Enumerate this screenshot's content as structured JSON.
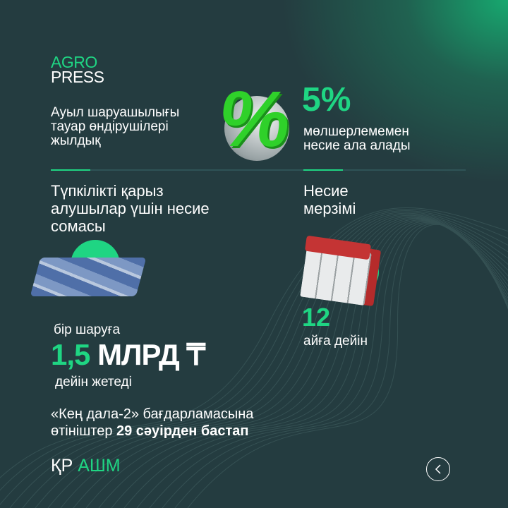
{
  "brand": {
    "line1": "AGRO",
    "line2": "PRESS"
  },
  "intro": {
    "lines": [
      "Ауыл шаруашылығы",
      "тауар өндірушілері",
      "жылдық"
    ]
  },
  "rate": {
    "value": "5%",
    "lines": [
      "мөлшерлемемен",
      "несие ала алады"
    ]
  },
  "amount_heading": {
    "lines": [
      "Түпкілікті қарыз",
      "алушылар үшін несие",
      "сомасы"
    ]
  },
  "term_heading": {
    "lines": [
      "Несие",
      "мерзімі"
    ]
  },
  "amount": {
    "prefix": "бір шаруға",
    "number": "1,5",
    "unit": "МЛРД ₸",
    "suffix": "дейін жетеді"
  },
  "term": {
    "number": "12",
    "suffix": "айға дейін"
  },
  "program": {
    "line1": "«Кең дала-2» бағдарламасына",
    "line2_regular": "өтініштер ",
    "line2_bold": "29 сәуірден бастап"
  },
  "source": {
    "part1": "ҚР ",
    "part2": "АШМ"
  },
  "colors": {
    "background": "#243c40",
    "accent": "#1fd583"
  },
  "icons": [
    "percent-icon",
    "money-stack-icon",
    "calendar-icon",
    "back-arrow-icon"
  ]
}
